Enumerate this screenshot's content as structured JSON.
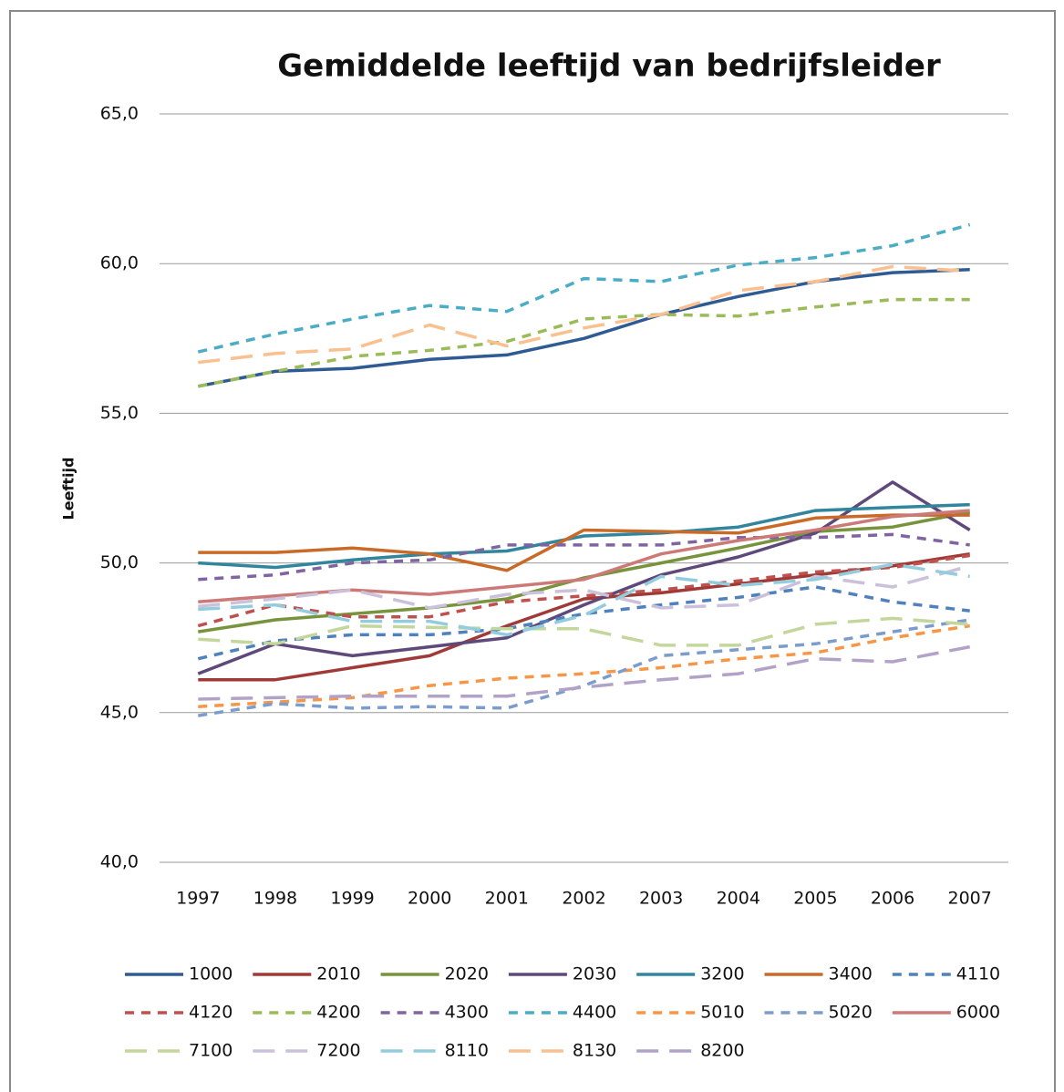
{
  "chart_data": {
    "type": "line",
    "title": "Gemiddelde leeftijd van bedrijfsleider",
    "y_label": "Leeftijd",
    "categories": [
      "1997",
      "1998",
      "1999",
      "2000",
      "2001",
      "2002",
      "2003",
      "2004",
      "2005",
      "2006",
      "2007"
    ],
    "ylim": [
      40,
      65
    ],
    "yticks": [
      {
        "value": 40,
        "label": "40,0"
      },
      {
        "value": 45,
        "label": "45,0"
      },
      {
        "value": 50,
        "label": "50,0"
      },
      {
        "value": 55,
        "label": "55,0"
      },
      {
        "value": 60,
        "label": "60,0"
      },
      {
        "value": 65,
        "label": "65,0"
      }
    ],
    "grid": true,
    "legend": "bottom",
    "series": [
      {
        "name": "1000",
        "color": "#2f5b94",
        "style": "solid",
        "values": [
          55.9,
          56.4,
          56.5,
          56.8,
          56.95,
          57.5,
          58.3,
          58.9,
          59.4,
          59.7,
          59.8
        ]
      },
      {
        "name": "2010",
        "color": "#a03a37",
        "style": "solid",
        "values": [
          46.1,
          46.1,
          46.5,
          46.9,
          47.9,
          48.8,
          49.0,
          49.3,
          49.6,
          49.9,
          50.3
        ]
      },
      {
        "name": "2020",
        "color": "#77933c",
        "style": "solid",
        "values": [
          47.7,
          48.1,
          48.3,
          48.5,
          48.8,
          49.5,
          50.0,
          50.5,
          51.05,
          51.2,
          51.7
        ]
      },
      {
        "name": "2030",
        "color": "#5f497a",
        "style": "solid",
        "values": [
          46.3,
          47.3,
          46.9,
          47.2,
          47.5,
          48.6,
          49.6,
          50.2,
          51.0,
          52.7,
          51.1
        ]
      },
      {
        "name": "3200",
        "color": "#31859c",
        "style": "solid",
        "values": [
          50.0,
          49.85,
          50.1,
          50.3,
          50.4,
          50.9,
          51.0,
          51.2,
          51.75,
          51.85,
          51.95
        ]
      },
      {
        "name": "3400",
        "color": "#c96a28",
        "style": "solid",
        "values": [
          50.35,
          50.35,
          50.5,
          50.3,
          49.75,
          51.1,
          51.05,
          51.0,
          51.5,
          51.6,
          51.6
        ]
      },
      {
        "name": "4110",
        "color": "#4f81bd",
        "style": "dash",
        "values": [
          46.8,
          47.4,
          47.6,
          47.6,
          47.8,
          48.3,
          48.6,
          48.85,
          49.2,
          48.7,
          48.4
        ]
      },
      {
        "name": "4120",
        "color": "#c0504d",
        "style": "dash",
        "values": [
          47.9,
          48.6,
          48.2,
          48.2,
          48.7,
          48.9,
          49.1,
          49.4,
          49.7,
          49.85,
          50.25
        ]
      },
      {
        "name": "4200",
        "color": "#9bbb59",
        "style": "dash",
        "values": [
          55.9,
          56.4,
          56.9,
          57.1,
          57.4,
          58.15,
          58.3,
          58.25,
          58.55,
          58.8,
          58.8
        ]
      },
      {
        "name": "4300",
        "color": "#8064a2",
        "style": "dash",
        "values": [
          49.45,
          49.6,
          50.0,
          50.1,
          50.6,
          50.6,
          50.6,
          50.85,
          50.85,
          50.95,
          50.6
        ]
      },
      {
        "name": "4400",
        "color": "#4bacc6",
        "style": "dash",
        "values": [
          57.05,
          57.65,
          58.15,
          58.6,
          58.4,
          59.5,
          59.4,
          59.95,
          60.2,
          60.6,
          61.3
        ]
      },
      {
        "name": "5010",
        "color": "#f79646",
        "style": "dash",
        "values": [
          45.2,
          45.35,
          45.5,
          45.9,
          46.15,
          46.3,
          46.5,
          46.8,
          47.0,
          47.5,
          47.9
        ]
      },
      {
        "name": "5020",
        "color": "#7c9ccc",
        "style": "dash",
        "values": [
          44.9,
          45.3,
          45.15,
          45.2,
          45.15,
          45.9,
          46.9,
          47.1,
          47.3,
          47.7,
          48.1
        ]
      },
      {
        "name": "6000",
        "color": "#cc7a78",
        "style": "solid",
        "values": [
          48.7,
          48.9,
          49.1,
          48.95,
          49.2,
          49.45,
          50.3,
          50.75,
          51.1,
          51.55,
          51.75
        ]
      },
      {
        "name": "7100",
        "color": "#c3d69b",
        "style": "longdash",
        "values": [
          47.45,
          47.3,
          47.9,
          47.85,
          47.8,
          47.8,
          47.25,
          47.25,
          47.95,
          48.15,
          47.95
        ]
      },
      {
        "name": "7200",
        "color": "#ccc1da",
        "style": "longdash",
        "values": [
          48.55,
          48.8,
          49.1,
          48.5,
          48.95,
          49.1,
          48.5,
          48.6,
          49.55,
          49.2,
          49.9
        ]
      },
      {
        "name": "8110",
        "color": "#93cddd",
        "style": "longdash",
        "values": [
          48.45,
          48.6,
          48.05,
          48.05,
          47.6,
          48.25,
          49.55,
          49.25,
          49.45,
          49.95,
          49.55
        ]
      },
      {
        "name": "8130",
        "color": "#fac090",
        "style": "longdash",
        "values": [
          56.7,
          57.0,
          57.15,
          57.95,
          57.25,
          57.85,
          58.3,
          59.1,
          59.4,
          59.9,
          59.75
        ]
      },
      {
        "name": "8200",
        "color": "#b3a2c7",
        "style": "longdash",
        "values": [
          45.45,
          45.5,
          45.55,
          45.55,
          45.55,
          45.85,
          46.1,
          46.3,
          46.8,
          46.7,
          47.2
        ]
      }
    ]
  }
}
